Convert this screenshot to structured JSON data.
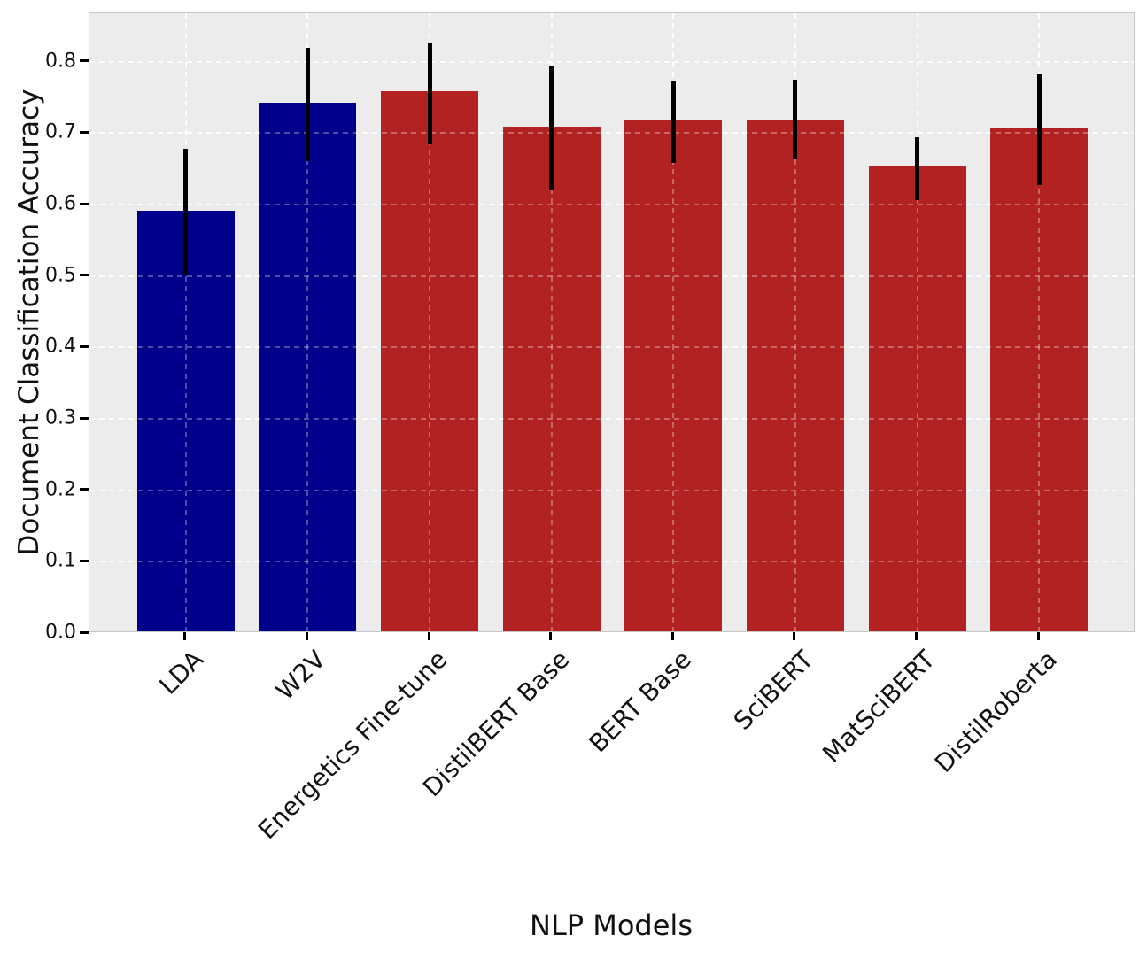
{
  "figure": {
    "background": "#ffffff",
    "plot_background": "#ececec",
    "spine_color": "#c6c6c6",
    "grid_color": "#ffffff",
    "grid_over_bar_opacity": 0.3,
    "grid_under_opacity": 0.95,
    "tick_mark_color": "#000000",
    "error_bar_color": "#000000",
    "text_color": "#111111",
    "palette": {
      "blue": "#00008B",
      "red": "#B22222"
    }
  },
  "chart_data": {
    "type": "bar",
    "xlabel": "NLP Models",
    "ylabel": "Document Classification Accuracy",
    "categories": [
      "LDA",
      "W2V",
      "Energetics Fine-tune",
      "DistilBERT Base",
      "BERT Base",
      "SciBERT",
      "MatSciBERT",
      "DistilRoberta"
    ],
    "values": [
      0.589,
      0.74,
      0.756,
      0.707,
      0.717,
      0.717,
      0.652,
      0.706
    ],
    "error_low": [
      0.502,
      0.661,
      0.685,
      0.62,
      0.658,
      0.663,
      0.606,
      0.627
    ],
    "error_high": [
      0.678,
      0.82,
      0.826,
      0.793,
      0.774,
      0.775,
      0.695,
      0.783
    ],
    "bar_colors": [
      "#00008B",
      "#00008B",
      "#B22222",
      "#B22222",
      "#B22222",
      "#B22222",
      "#B22222",
      "#B22222"
    ],
    "ylim": [
      0,
      0.868
    ],
    "yticks": [
      0.0,
      0.1,
      0.2,
      0.3,
      0.4,
      0.5,
      0.6,
      0.7,
      0.8
    ],
    "ytick_labels": [
      "0.0",
      "0.1",
      "0.2",
      "0.3",
      "0.4",
      "0.5",
      "0.6",
      "0.7",
      "0.8"
    ],
    "bar_width_fraction": 0.8,
    "grid": true,
    "legend": "none"
  }
}
